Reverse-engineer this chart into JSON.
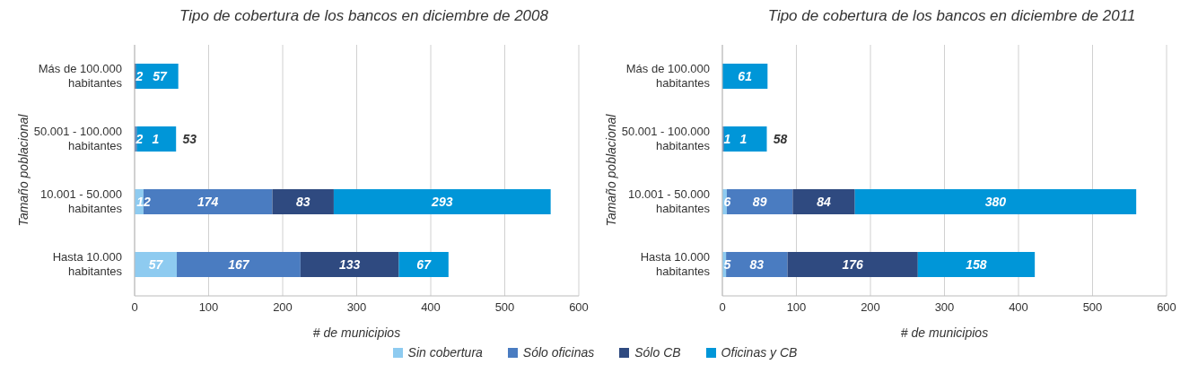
{
  "chart_data": [
    {
      "type": "bar",
      "orientation": "horizontal",
      "stacked": true,
      "title": "Tipo de cobertura de los bancos en diciembre de 2008",
      "xlabel": "# de municipios",
      "ylabel": "Tamaño poblacional",
      "categories": [
        "Más de 100.000 habitantes",
        "50.001 - 100.000 habitantes",
        "10.001 - 50.000 habitantes",
        "Hasta 10.000 habitantes"
      ],
      "series": [
        {
          "name": "Sin cobertura",
          "color": "#8ecbf0",
          "values": [
            null,
            null,
            12,
            57
          ]
        },
        {
          "name": "Sólo oficinas",
          "color": "#4a7cc1",
          "values": [
            null,
            2,
            174,
            167
          ]
        },
        {
          "name": "Sólo CB",
          "color": "#2f4a80",
          "values": [
            2,
            1,
            83,
            133
          ]
        },
        {
          "name": "Oficinas y CB",
          "color": "#0096d8",
          "values": [
            57,
            53,
            293,
            67
          ]
        }
      ],
      "xlim": [
        0,
        600
      ],
      "xticks": [
        0,
        100,
        200,
        300,
        400,
        500,
        600
      ],
      "grid": "x",
      "data_labels": true,
      "legend": "bottom"
    },
    {
      "type": "bar",
      "orientation": "horizontal",
      "stacked": true,
      "title": "Tipo de cobertura de los bancos en diciembre de 2011",
      "xlabel": "# de municipios",
      "ylabel": "Tamaño poblacional",
      "categories": [
        "Más de 100.000 habitantes",
        "50.001 - 100.000 habitantes",
        "10.001 - 50.000 habitantes",
        "Hasta 10.000 habitantes"
      ],
      "series": [
        {
          "name": "Sin cobertura",
          "color": "#8ecbf0",
          "values": [
            null,
            null,
            6,
            5
          ]
        },
        {
          "name": "Sólo oficinas",
          "color": "#4a7cc1",
          "values": [
            null,
            1,
            89,
            83
          ]
        },
        {
          "name": "Sólo CB",
          "color": "#2f4a80",
          "values": [
            null,
            1,
            84,
            176
          ]
        },
        {
          "name": "Oficinas y CB",
          "color": "#0096d8",
          "values": [
            61,
            58,
            380,
            158
          ]
        }
      ],
      "xlim": [
        0,
        600
      ],
      "xticks": [
        0,
        100,
        200,
        300,
        400,
        500,
        600
      ],
      "grid": "x",
      "data_labels": true
    }
  ]
}
